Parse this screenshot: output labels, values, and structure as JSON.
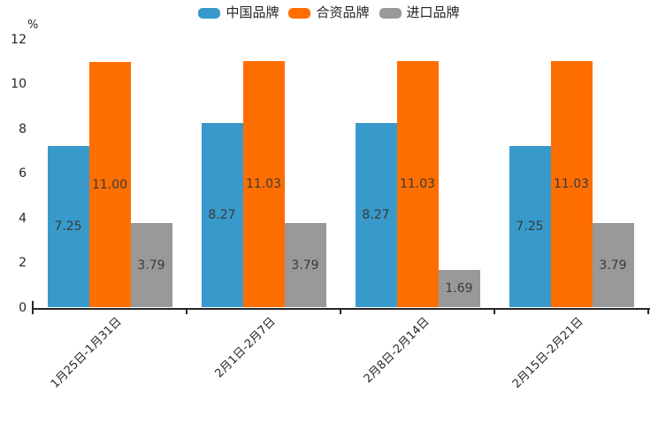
{
  "chart_data": {
    "type": "bar",
    "title": "",
    "ylabel": "%",
    "xlabel": "",
    "categories": [
      "1月25日-1月31日",
      "2月1日-2月7日",
      "2月8日-2月14日",
      "2月15日-2月21日"
    ],
    "series": [
      {
        "name": "中国品牌",
        "color": "#3899CB",
        "values": [
          7.25,
          8.27,
          8.27,
          7.25
        ],
        "labels": [
          "7.25",
          "8.27",
          "8.27",
          "7.25"
        ]
      },
      {
        "name": "合资品牌",
        "color": "#FF6E00",
        "values": [
          11.0,
          11.03,
          11.03,
          11.03
        ],
        "labels": [
          "11.00",
          "11.03",
          "11.03",
          "11.03"
        ]
      },
      {
        "name": "进口品牌",
        "color": "#999999",
        "values": [
          3.79,
          3.79,
          1.69,
          3.79
        ],
        "labels": [
          "3.79",
          "3.79",
          "1.69",
          "3.79"
        ]
      }
    ],
    "ylim": [
      0,
      12
    ],
    "yticks": [
      0,
      2,
      4,
      6,
      8,
      10,
      12
    ],
    "grid": false,
    "legend_position": "top-center",
    "value_labels_inside_bars": true,
    "x_labels_rotation_deg": 45
  },
  "colors": {
    "axis": "#262626",
    "tick_text": "#262626",
    "value_label": "#3a3a3a",
    "background": "#ffffff"
  }
}
